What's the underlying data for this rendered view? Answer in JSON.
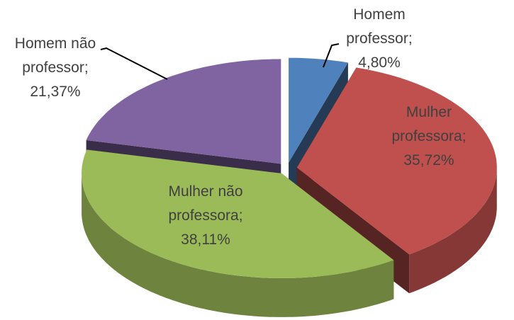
{
  "chart_data": {
    "type": "pie",
    "categories": [
      "Homem professor",
      "Mulher professora",
      "Mulher não professora",
      "Homem não professor"
    ],
    "label_separator": ";",
    "values": [
      4.8,
      35.72,
      38.11,
      21.37
    ],
    "value_labels": [
      "4,80%",
      "35,72%",
      "38,11%",
      "21,37%"
    ],
    "colors": [
      "#4f81bd",
      "#c0504d",
      "#9bbb59",
      "#8064a2"
    ]
  }
}
